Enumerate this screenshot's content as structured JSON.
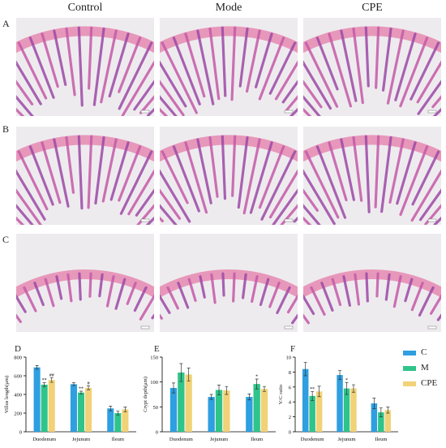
{
  "figure": {
    "columns": [
      "Control",
      "Mode",
      "CPE"
    ],
    "rows": [
      "A",
      "B",
      "C"
    ],
    "panels": [
      "D",
      "E",
      "F"
    ]
  },
  "legend": [
    {
      "label": "C",
      "color": "#2e9fe0"
    },
    {
      "label": "M",
      "color": "#2fc48a"
    },
    {
      "label": "CPE",
      "color": "#f1d277"
    }
  ],
  "chart_data": [
    {
      "type": "bar",
      "panel": "D",
      "categories": [
        "Duodenum",
        "Jejunum",
        "Ileum"
      ],
      "ylabel": "Villus length(μm)",
      "ylim": [
        0,
        800
      ],
      "yticks": [
        0,
        200,
        400,
        600,
        800
      ],
      "series": [
        {
          "name": "C",
          "values": [
            690,
            510,
            250
          ],
          "errors": [
            20,
            15,
            25
          ]
        },
        {
          "name": "M",
          "values": [
            505,
            420,
            200
          ],
          "errors": [
            20,
            15,
            20
          ]
        },
        {
          "name": "CPE",
          "values": [
            555,
            470,
            240
          ],
          "errors": [
            25,
            20,
            25
          ]
        }
      ],
      "annotations": [
        {
          "category": "Duodenum",
          "series": "M",
          "text": "**"
        },
        {
          "category": "Duodenum",
          "series": "CPE",
          "text": "##"
        },
        {
          "category": "Jejunum",
          "series": "M",
          "text": "**"
        },
        {
          "category": "Jejunum",
          "series": "CPE",
          "text": "#"
        }
      ]
    },
    {
      "type": "bar",
      "panel": "E",
      "categories": [
        "Duodenum",
        "Jejunum",
        "Ileum"
      ],
      "ylabel": "Crypt depth(μm)",
      "ylim": [
        0,
        150
      ],
      "yticks": [
        0,
        50,
        100,
        150
      ],
      "series": [
        {
          "name": "C",
          "values": [
            88,
            70,
            70
          ],
          "errors": [
            10,
            5,
            6
          ]
        },
        {
          "name": "M",
          "values": [
            119,
            84,
            96
          ],
          "errors": [
            18,
            10,
            10
          ]
        },
        {
          "name": "CPE",
          "values": [
            115,
            83,
            86
          ],
          "errors": [
            13,
            8,
            5
          ]
        }
      ],
      "annotations": [
        {
          "category": "Ileum",
          "series": "M",
          "text": "*"
        }
      ]
    },
    {
      "type": "bar",
      "panel": "F",
      "categories": [
        "Duodenum",
        "Jejunum",
        "Ileum"
      ],
      "ylabel": "V/C ratio",
      "ylim": [
        0,
        10
      ],
      "yticks": [
        0,
        2,
        4,
        6,
        8,
        10
      ],
      "series": [
        {
          "name": "C",
          "values": [
            8.4,
            7.6,
            3.8
          ],
          "errors": [
            0.9,
            0.6,
            0.7
          ]
        },
        {
          "name": "M",
          "values": [
            4.8,
            5.8,
            2.6
          ],
          "errors": [
            0.6,
            0.8,
            0.6
          ]
        },
        {
          "name": "CPE",
          "values": [
            5.4,
            5.8,
            2.9
          ],
          "errors": [
            0.7,
            0.5,
            0.4
          ]
        }
      ],
      "annotations": [
        {
          "category": "Duodenum",
          "series": "M",
          "text": "**"
        },
        {
          "category": "Jejunum",
          "series": "M",
          "text": "*"
        }
      ]
    }
  ]
}
